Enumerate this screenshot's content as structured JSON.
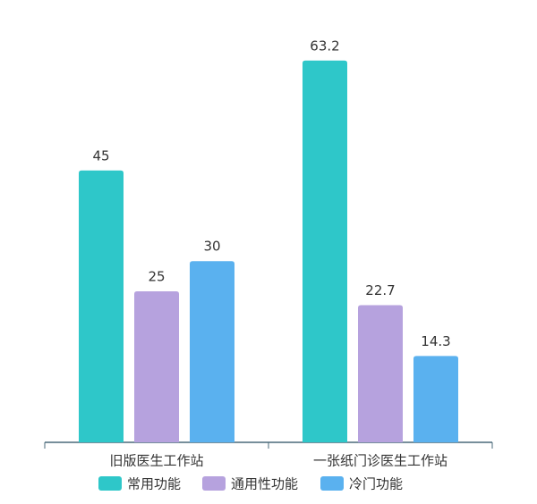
{
  "chart_data": {
    "type": "bar",
    "categories": [
      "旧版医生工作站",
      "一张纸门诊医生工作站"
    ],
    "series": [
      {
        "name": "常用功能",
        "color": "#2ec7c9",
        "values": [
          45,
          63.2
        ]
      },
      {
        "name": "通用性功能",
        "color": "#b6a2de",
        "values": [
          25,
          22.7
        ]
      },
      {
        "name": "冷门功能",
        "color": "#5ab1ef",
        "values": [
          30,
          14.3
        ]
      }
    ]
  }
}
